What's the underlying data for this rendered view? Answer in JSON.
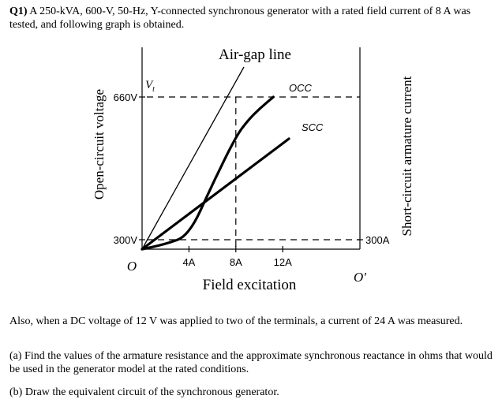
{
  "question": {
    "intro_bold": "Q1)",
    "intro": " A 250-kVA, 600-V, 50-Hz, Y-connected synchronous generator with a rated field current of 8 A was tested, and following graph is obtained.",
    "also": "Also, when a DC voltage of 12 V was applied to two of the terminals, a current of 24 A was measured.",
    "part_a": "(a) Find the values of the armature resistance and the approximate synchronous reactance in ohms that would be used in the generator model at the rated conditions.",
    "part_b": "(b) Draw the equivalent circuit of the synchronous generator."
  },
  "chart_data": {
    "type": "line",
    "title": "Air-gap line",
    "xlabel": "Field excitation",
    "ylabel_left": "Open-circuit voltage",
    "ylabel_right": "Short-circuit armature current",
    "x_ticks": [
      "4A",
      "8A",
      "12A"
    ],
    "x_tick_values": [
      4,
      8,
      12
    ],
    "origin_left": "O",
    "origin_right": "O′",
    "y_ticks_left": [
      {
        "label": "660V",
        "value": 660
      },
      {
        "label": "300V",
        "value": 300
      }
    ],
    "y_ticks_right": [
      {
        "label": "300A",
        "value": 300
      }
    ],
    "annotation_vt": "V",
    "annotation_vt_sub": "t",
    "series": [
      {
        "name": "Air-gap line",
        "x": [
          0,
          10.3
        ],
        "y": [
          0,
          830
        ]
      },
      {
        "name": "OCC",
        "x": [
          0,
          2,
          4,
          6,
          8,
          9,
          10,
          11.2
        ],
        "y": [
          0,
          160,
          310,
          440,
          560,
          600,
          630,
          660
        ]
      },
      {
        "name": "SCC",
        "x": [
          0,
          12.5
        ],
        "y_current": [
          0,
          470
        ]
      }
    ],
    "series_labels": {
      "occ": "OCC",
      "scc": "SCC"
    },
    "colors": {
      "ink": "#000000"
    }
  }
}
